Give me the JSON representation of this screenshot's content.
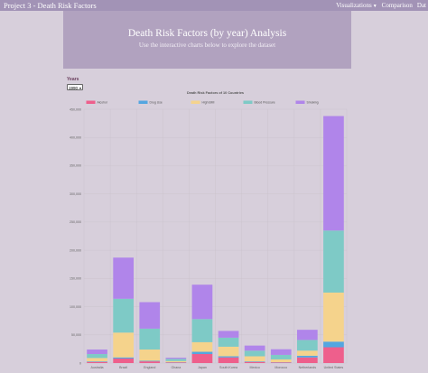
{
  "navbar": {
    "brand": "Project 3 - Death Risk Factors",
    "links": [
      "Visualizations",
      "Comparison",
      "Dat"
    ]
  },
  "header": {
    "title": "Death Risk Factors (by year) Analysis",
    "subtitle": "Use the interactive charts below to explore the dataset"
  },
  "controls": {
    "years_label": "Years",
    "year_value": "1990"
  },
  "chart_data": {
    "type": "bar",
    "stacked": true,
    "title": "Death Risk Factors of 10 Countries",
    "categories": [
      "Australia",
      "Brazil",
      "England",
      "Ghana",
      "Japan",
      "South Korea",
      "Mexico",
      "Morocco",
      "Netherlands",
      "United States"
    ],
    "series": [
      {
        "name": "Alcohol",
        "color": "#ee5f8c",
        "values": [
          2000,
          8000,
          3000,
          1000,
          16000,
          10000,
          2000,
          1000,
          10000,
          28000
        ]
      },
      {
        "name": "Drug Use",
        "color": "#54a6e0",
        "values": [
          1000,
          2000,
          1000,
          500,
          4000,
          2000,
          1000,
          500,
          3000,
          10000
        ]
      },
      {
        "name": "High BMI",
        "color": "#f5d38c",
        "values": [
          6000,
          44000,
          20000,
          2000,
          17000,
          17000,
          9000,
          5000,
          9000,
          87000
        ]
      },
      {
        "name": "Blood Pressure",
        "color": "#7ecac6",
        "values": [
          7000,
          60000,
          37000,
          4000,
          41000,
          16000,
          10000,
          8000,
          19000,
          110000
        ]
      },
      {
        "name": "Smoking",
        "color": "#b085ea",
        "values": [
          8000,
          73000,
          47000,
          2000,
          61000,
          12000,
          9000,
          10000,
          18000,
          203000
        ]
      }
    ],
    "ylim": [
      0,
      450000
    ],
    "yticks": [
      "0",
      "50,000",
      "100,000",
      "150,000",
      "200,000",
      "250,000",
      "300,000",
      "350,000",
      "400,000",
      "450,000"
    ],
    "ytick_values": [
      0,
      50000,
      100000,
      150000,
      200000,
      250000,
      300000,
      350000,
      400000,
      450000
    ],
    "grid": true,
    "legend_position": "top"
  }
}
